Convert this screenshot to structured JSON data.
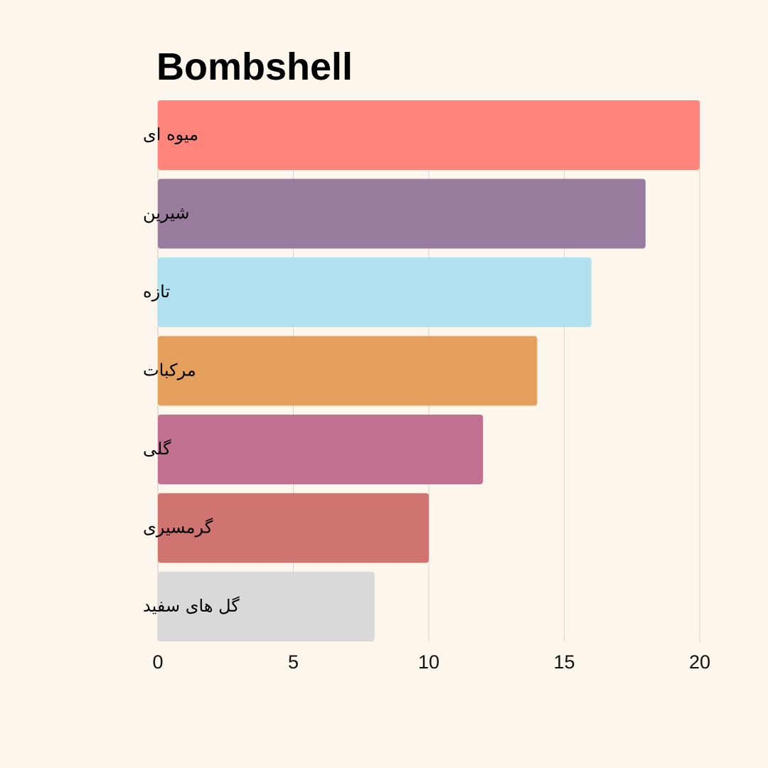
{
  "chart_data": {
    "type": "bar",
    "orientation": "horizontal",
    "title": "Bombshell",
    "xlabel": "",
    "ylabel": "",
    "xlim": [
      0,
      20
    ],
    "xticks": [
      0,
      5,
      10,
      15,
      20
    ],
    "grid": true,
    "categories": [
      "میوه ای",
      "شیرین",
      "تازه",
      "مرکبات",
      "گلی",
      "گرمسیری",
      "گل های سفید"
    ],
    "values": [
      20,
      18,
      16,
      14,
      12,
      10,
      8
    ],
    "colors": [
      "#ff857c",
      "#997b9e",
      "#b1e0ef",
      "#e5a05e",
      "#c2708f",
      "#cf7470",
      "#d9d9d9"
    ],
    "background": "#fdf6ec"
  }
}
